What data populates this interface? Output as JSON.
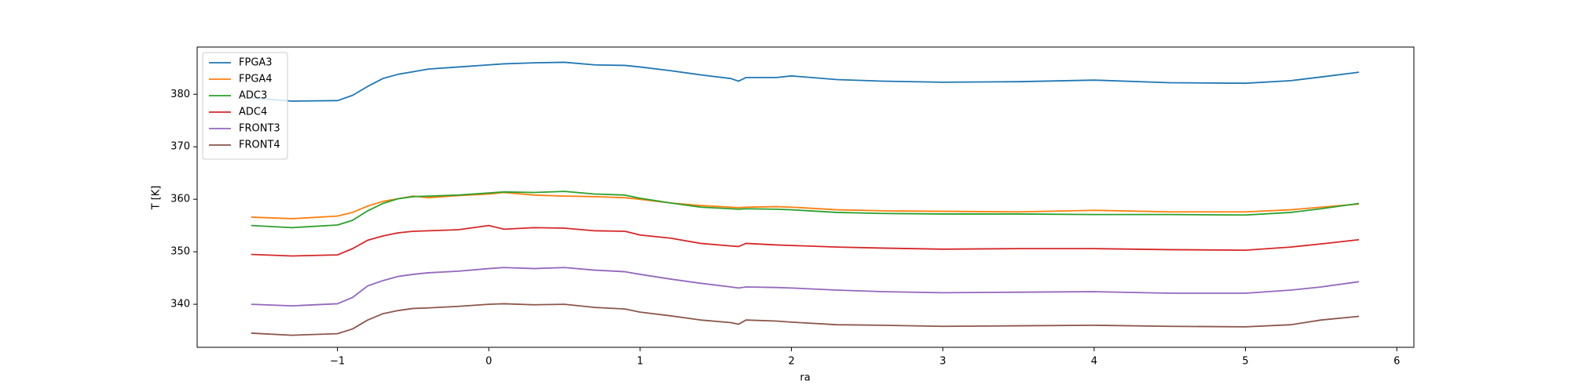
{
  "chart_data": {
    "type": "line",
    "x_label": "ra",
    "y_label": "T [K]",
    "x": [
      -1.57,
      -1.3,
      -1.0,
      -0.9,
      -0.8,
      -0.7,
      -0.6,
      -0.5,
      -0.4,
      -0.2,
      0,
      0.1,
      0.3,
      0.5,
      0.7,
      0.9,
      1.0,
      1.2,
      1.4,
      1.6,
      1.65,
      1.7,
      1.9,
      2.0,
      2.3,
      2.6,
      3.0,
      3.5,
      4.0,
      4.5,
      5.0,
      5.3,
      5.5,
      5.75
    ],
    "series": [
      {
        "name": "FPGA3",
        "color": "#1f77b4",
        "values": [
          379.3,
          378.7,
          378.8,
          379.8,
          381.5,
          383,
          383.8,
          384.3,
          384.8,
          385.2,
          385.6,
          385.8,
          386,
          386.1,
          385.6,
          385.5,
          385.2,
          384.5,
          383.7,
          383,
          382.5,
          383.2,
          383.2,
          383.5,
          382.8,
          382.5,
          382.3,
          382.4,
          382.7,
          382.2,
          382.1,
          382.6,
          383.3,
          384.2
        ]
      },
      {
        "name": "FPGA4",
        "color": "#ff7f0e",
        "values": [
          356.6,
          356.3,
          356.8,
          357.5,
          358.7,
          359.6,
          360.1,
          360.6,
          360.3,
          360.7,
          361,
          361.3,
          360.8,
          360.6,
          360.5,
          360.3,
          360,
          359.3,
          358.8,
          358.5,
          358.4,
          358.5,
          358.6,
          358.5,
          358,
          357.8,
          357.7,
          357.6,
          357.9,
          357.6,
          357.6,
          358,
          358.5,
          359.1
        ]
      },
      {
        "name": "ADC3",
        "color": "#2ca02c",
        "values": [
          355,
          354.6,
          355.1,
          356,
          357.8,
          359.2,
          360.1,
          360.5,
          360.6,
          360.8,
          361.2,
          361.4,
          361.3,
          361.5,
          361,
          360.8,
          360.2,
          359.3,
          358.5,
          358.2,
          358.1,
          358.2,
          358.1,
          358,
          357.5,
          357.3,
          357.2,
          357.2,
          357.1,
          357.1,
          357,
          357.5,
          358.2,
          359.2
        ]
      },
      {
        "name": "ADC4",
        "color": "#d62728",
        "values": [
          349.5,
          349.2,
          349.4,
          350.6,
          352.2,
          353,
          353.6,
          353.9,
          354,
          354.2,
          355,
          354.3,
          354.6,
          354.5,
          354,
          353.9,
          353.2,
          352.6,
          351.6,
          351.1,
          351,
          351.6,
          351.3,
          351.2,
          350.9,
          350.7,
          350.5,
          350.6,
          350.6,
          350.4,
          350.3,
          350.9,
          351.5,
          352.3
        ]
      },
      {
        "name": "FRONT3",
        "color": "#9467bd",
        "values": [
          340,
          339.7,
          340.1,
          341.3,
          343.5,
          344.5,
          345.3,
          345.7,
          346,
          346.3,
          346.8,
          347,
          346.8,
          347,
          346.5,
          346.2,
          345.7,
          344.8,
          344,
          343.3,
          343.1,
          343.3,
          343.2,
          343.1,
          342.7,
          342.4,
          342.2,
          342.3,
          342.4,
          342.1,
          342.1,
          342.7,
          343.3,
          344.3
        ]
      },
      {
        "name": "FRONT4",
        "color": "#8c564b",
        "values": [
          334.5,
          334.1,
          334.4,
          335.3,
          337,
          338.2,
          338.8,
          339.2,
          339.3,
          339.6,
          340,
          340.1,
          339.9,
          340,
          339.4,
          339.1,
          338.5,
          337.8,
          337,
          336.5,
          336.2,
          337,
          336.8,
          336.6,
          336.1,
          336,
          335.8,
          335.9,
          336,
          335.8,
          335.7,
          336.1,
          337,
          337.7
        ]
      }
    ],
    "xlim": [
      -1.927,
      6.113
    ],
    "ylim": [
      331.8,
      389
    ],
    "xticks": [
      {
        "value": -1,
        "label": "−1"
      },
      0,
      1,
      2,
      3,
      4,
      5,
      6
    ],
    "yticks": [
      340,
      350,
      360,
      370,
      380
    ],
    "legend": "upper left"
  }
}
